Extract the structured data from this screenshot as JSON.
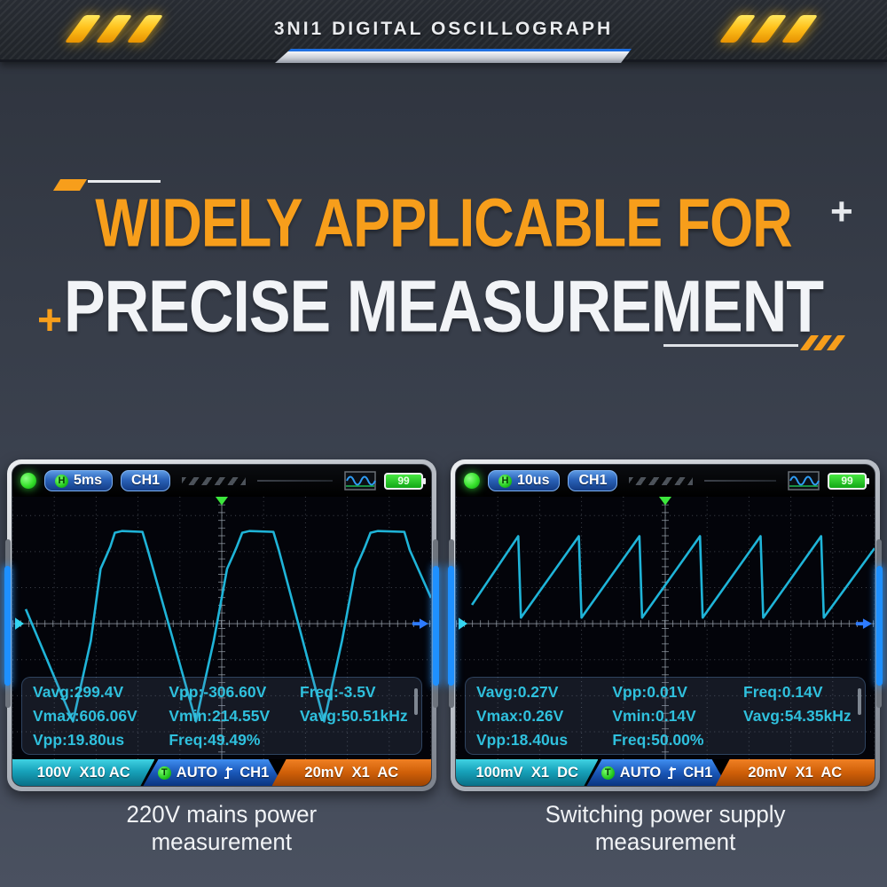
{
  "header": {
    "title": "3NI1 DIGITAL OSCILLOGRAPH"
  },
  "hero": {
    "line1": "WIDELY APPLICABLE FOR",
    "line1_plus": "+",
    "line2": "PRECISE MEASUREMENT",
    "line2_plus": "+"
  },
  "colors": {
    "accent_orange": "#F79E1B",
    "heading_white": "#F2F4F7",
    "scope_text_cyan": "#2FC0DD",
    "wave_cyan": "#1FB4D8",
    "badge_blue": "#2A62B8",
    "segment_teal": "#17A2BA",
    "segment_blue": "#1A57B8",
    "segment_orange": "#CF5F08",
    "battery_green": "#12A816",
    "led_green": "#35E02A"
  },
  "scopes": [
    {
      "top_bar": {
        "h_label": "H",
        "timebase": "5ms",
        "channel": "CH1",
        "battery": "99"
      },
      "measurements": [
        [
          "Vavg:299.4V",
          "Vpp:-306.60V",
          "Freq:-3.5V"
        ],
        [
          "Vmax:606.06V",
          "Vmin:214.55V",
          "Vavg:50.51kHz"
        ],
        [
          "Vpp:19.80us",
          "Freq:49.49%",
          ""
        ]
      ],
      "bottom_bar": {
        "channel1": "100V  X10 AC",
        "trigger_t": "T",
        "trigger_mode": "AUTO",
        "trigger_source": "CH1",
        "channel2": "20mV  X1  AC"
      },
      "caption_line1": "220V mains power",
      "caption_line2": "measurement",
      "waveform": {
        "type": "clipped-sine",
        "points": [
          [
            15,
            131
          ],
          [
            68,
            262
          ],
          [
            88,
            168
          ],
          [
            99,
            84
          ],
          [
            105,
            70
          ],
          [
            110,
            58
          ],
          [
            115,
            42
          ],
          [
            123,
            40
          ],
          [
            146,
            41
          ],
          [
            152,
            62
          ],
          [
            206,
            262
          ],
          [
            226,
            168
          ],
          [
            241,
            84
          ],
          [
            247,
            70
          ],
          [
            252,
            58
          ],
          [
            258,
            42
          ],
          [
            266,
            40
          ],
          [
            293,
            41
          ],
          [
            299,
            62
          ],
          [
            350,
            262
          ],
          [
            370,
            168
          ],
          [
            385,
            84
          ],
          [
            391,
            70
          ],
          [
            396,
            58
          ],
          [
            402,
            42
          ],
          [
            410,
            40
          ],
          [
            440,
            41
          ],
          [
            446,
            62
          ],
          [
            470,
            118
          ]
        ]
      }
    },
    {
      "top_bar": {
        "h_label": "H",
        "timebase": "10us",
        "channel": "CH1",
        "battery": "99"
      },
      "measurements": [
        [
          "Vavg:0.27V",
          "Vpp:0.01V",
          "Freq:0.14V"
        ],
        [
          "Vmax:0.26V",
          "Vmin:0.14V",
          "Vavg:54.35kHz"
        ],
        [
          "Vpp:18.40us",
          "Freq:50.00%",
          ""
        ]
      ],
      "bottom_bar": {
        "channel1": "100mV  X1  DC",
        "trigger_t": "T",
        "trigger_mode": "AUTO",
        "trigger_source": "CH1",
        "channel2": "20mV  X1  AC"
      },
      "caption_line1": "Switching power supply",
      "caption_line2": "measurement",
      "waveform": {
        "type": "sawtooth",
        "points": [
          [
            18,
            126
          ],
          [
            70,
            46
          ],
          [
            73,
            141
          ],
          [
            138,
            46
          ],
          [
            141,
            141
          ],
          [
            206,
            46
          ],
          [
            209,
            141
          ],
          [
            274,
            46
          ],
          [
            277,
            141
          ],
          [
            342,
            46
          ],
          [
            345,
            141
          ],
          [
            410,
            46
          ],
          [
            413,
            141
          ],
          [
            470,
            60
          ]
        ]
      }
    }
  ]
}
